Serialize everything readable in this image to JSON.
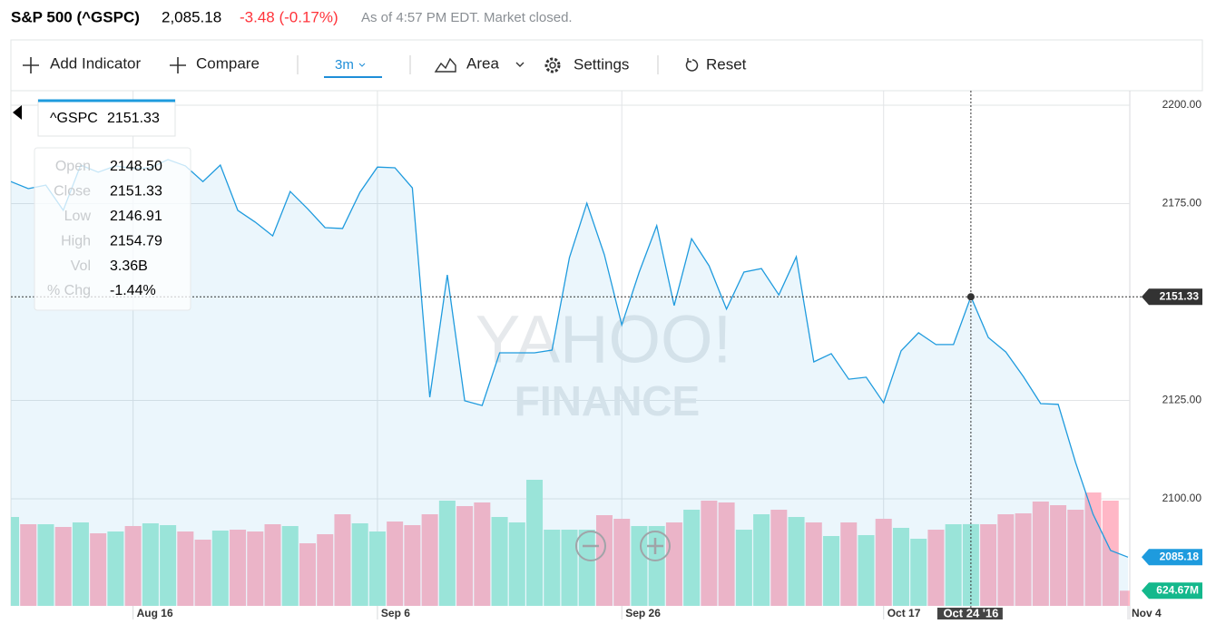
{
  "header": {
    "symbol": "S&P 500 (^GSPC)",
    "price": "2,085.18",
    "change": "-3.48 (-0.17%)",
    "status": "As of 4:57 PM EDT. Market closed."
  },
  "toolbar": [
    "Add Indicator",
    "Compare",
    "3m",
    "Area",
    "Settings",
    "Reset"
  ],
  "watermark": [
    "YAHOO!",
    "FINANCE"
  ],
  "tooltip": {
    "rows": [
      {
        "label": "Open",
        "value": "2148.50"
      },
      {
        "label": "Close",
        "value": "2151.33"
      },
      {
        "label": "Low",
        "value": "2146.91"
      },
      {
        "label": "High",
        "value": "2154.79"
      },
      {
        "label": "Vol",
        "value": "3.36B"
      },
      {
        "label": "% Chg",
        "value": "-1.44%"
      }
    ]
  },
  "crosshair": {
    "index": 55,
    "x_label": "Oct 24 '16"
  },
  "chart_data": {
    "type": "area",
    "categories": [
      null,
      null,
      null,
      null,
      null,
      null,
      null,
      "Aug 16",
      null,
      null,
      null,
      null,
      null,
      null,
      null,
      null,
      null,
      null,
      null,
      null,
      null,
      "Sep 6",
      null,
      null,
      null,
      null,
      null,
      null,
      null,
      null,
      null,
      null,
      null,
      null,
      null,
      "Sep 26",
      null,
      null,
      null,
      null,
      null,
      null,
      null,
      null,
      null,
      null,
      null,
      null,
      null,
      null,
      "Oct 17",
      null,
      null,
      null,
      null,
      null,
      null,
      null,
      null,
      null,
      null,
      null,
      null,
      null,
      "Nov 4"
    ],
    "series": [
      {
        "name": "^GSPC",
        "color": "#1f9bde",
        "values": [
          2180.6,
          2178.8,
          2179.7,
          2173.3,
          2184.8,
          2183.0,
          2184.6,
          2183.9,
          2184.1,
          2186.2,
          2184.6,
          2180.6,
          2184.8,
          2173.3,
          2170.3,
          2166.8,
          2178.1,
          2173.7,
          2168.9,
          2168.7,
          2177.9,
          2184.3,
          2184.1,
          2179.0,
          2125.8,
          2156.9,
          2124.9,
          2123.7,
          2137.1,
          2137.1,
          2137.1,
          2137.8,
          2161.3,
          2175.1,
          2162.0,
          2144.2,
          2157.6,
          2169.4,
          2149.1,
          2166.1,
          2159.2,
          2148.2,
          2157.6,
          2158.5,
          2151.8,
          2161.5,
          2134.8,
          2136.9,
          2130.4,
          2130.9,
          2124.4,
          2137.6,
          2142.2,
          2139.2,
          2139.2,
          2151.33,
          2141.0,
          2137.3,
          2131.1,
          2124.2,
          2124.0,
          2109.2,
          2096.1,
          2086.9,
          2085.18
        ]
      }
    ],
    "ylim": [
      2072.8,
      2203.7
    ],
    "yticks": [
      {
        "value": 2100,
        "label": "2100.00"
      },
      {
        "value": 2125,
        "label": "2125.00"
      },
      {
        "value": 2175,
        "label": "2175.00"
      },
      {
        "value": 2200,
        "label": "2200.00"
      }
    ],
    "grid": true,
    "volume": {
      "up_color": "#a6ecd9",
      "down_color": "#ffb7c6",
      "vlim": [
        0,
        21186
      ],
      "values": [
        3655,
        3357,
        3357,
        3245,
        3432,
        2984,
        3059,
        3282,
        3394,
        3320,
        3059,
        2723,
        3096,
        3133,
        3059,
        3357,
        3282,
        2574,
        2947,
        3767,
        3394,
        3059,
        3469,
        3320,
        3767,
        4327,
        4103,
        4252,
        3655,
        3432,
        5185,
        3133,
        3133,
        3133,
        3730,
        3581,
        3282,
        3282,
        3432,
        3954,
        4327,
        4252,
        3133,
        3767,
        3954,
        3655,
        3432,
        2872,
        3432,
        2909,
        3581,
        3208,
        2760,
        3133,
        3357,
        3360,
        3357,
        3767,
        3805,
        4290,
        4140,
        3954,
        4663,
        4327,
        624.67
      ],
      "value_labels": [
        null,
        null,
        null,
        null,
        null,
        null,
        null,
        null,
        null,
        null,
        null,
        null,
        null,
        null,
        null,
        null,
        null,
        null,
        null,
        null,
        null,
        null,
        null,
        null,
        null,
        null,
        null,
        null,
        null,
        null,
        null,
        null,
        null,
        null,
        null,
        null,
        null,
        null,
        null,
        null,
        null,
        null,
        null,
        null,
        null,
        null,
        null,
        null,
        null,
        null,
        null,
        null,
        null,
        null,
        null,
        null,
        null,
        null,
        null,
        null,
        null,
        null,
        null,
        null,
        "624.67M"
      ]
    }
  }
}
